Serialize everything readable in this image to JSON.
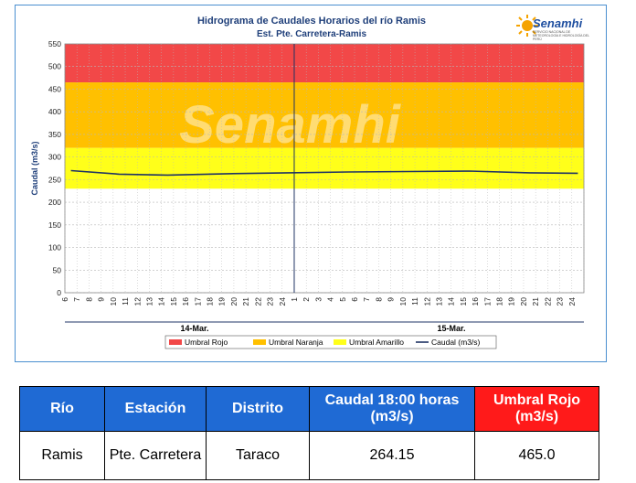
{
  "chart_data": {
    "type": "line",
    "title": "Hidrograma de Caudales Horarios del río Ramis",
    "subtitle": "Est. Pte. Carretera-Ramis",
    "ylabel": "Caudal (m3/s)",
    "xlabel": "",
    "ylim": [
      0,
      550
    ],
    "yticks": [
      0,
      50,
      100,
      150,
      200,
      250,
      300,
      350,
      400,
      450,
      500,
      550
    ],
    "x_hour_ticks": [
      "6",
      "7",
      "8",
      "9",
      "10",
      "11",
      "12",
      "13",
      "14",
      "15",
      "16",
      "17",
      "18",
      "19",
      "20",
      "21",
      "22",
      "23",
      "24",
      "1",
      "2",
      "3",
      "4",
      "5",
      "6",
      "7",
      "8",
      "9",
      "10",
      "11",
      "12",
      "13",
      "14",
      "15",
      "16",
      "17",
      "18",
      "19",
      "20",
      "21",
      "22",
      "23",
      "24"
    ],
    "day_labels": [
      "14-Mar.",
      "15-Mar."
    ],
    "thresholds": [
      {
        "name": "Umbral Rojo",
        "from": 465,
        "to": 550,
        "color": "#f24848"
      },
      {
        "name": "Umbral Naranja",
        "from": 320,
        "to": 465,
        "color": "#ffc000"
      },
      {
        "name": "Umbral Amarillo",
        "from": 230,
        "to": 320,
        "color": "#ffff1a"
      }
    ],
    "series": [
      {
        "name": "Caudal (m3/s)",
        "color": "#1f3364",
        "x_index": [
          0,
          4,
          8,
          13,
          18,
          23,
          28,
          33,
          38,
          42
        ],
        "values": [
          270,
          262,
          260,
          263,
          265,
          267,
          268,
          269,
          265,
          264.15
        ]
      }
    ],
    "marker_line_index": 19,
    "grid": true,
    "legend_position": "bottom"
  },
  "watermark": "Senamhi",
  "logo": {
    "text": "Senamhi",
    "subtitle": "SERVICIO NACIONAL DE METEOROLOGÍA E HIDROLOGÍA DEL PERÚ",
    "color": "#1f4fa0"
  },
  "table": {
    "headers": [
      "Río",
      "Estación",
      "Distrito",
      "Caudal  18:00 horas (m3/s)",
      "Umbral Rojo (m3/s)"
    ],
    "row": [
      "Ramis",
      "Pte. Carretera",
      "Taraco",
      "264.15",
      "465.0"
    ]
  }
}
